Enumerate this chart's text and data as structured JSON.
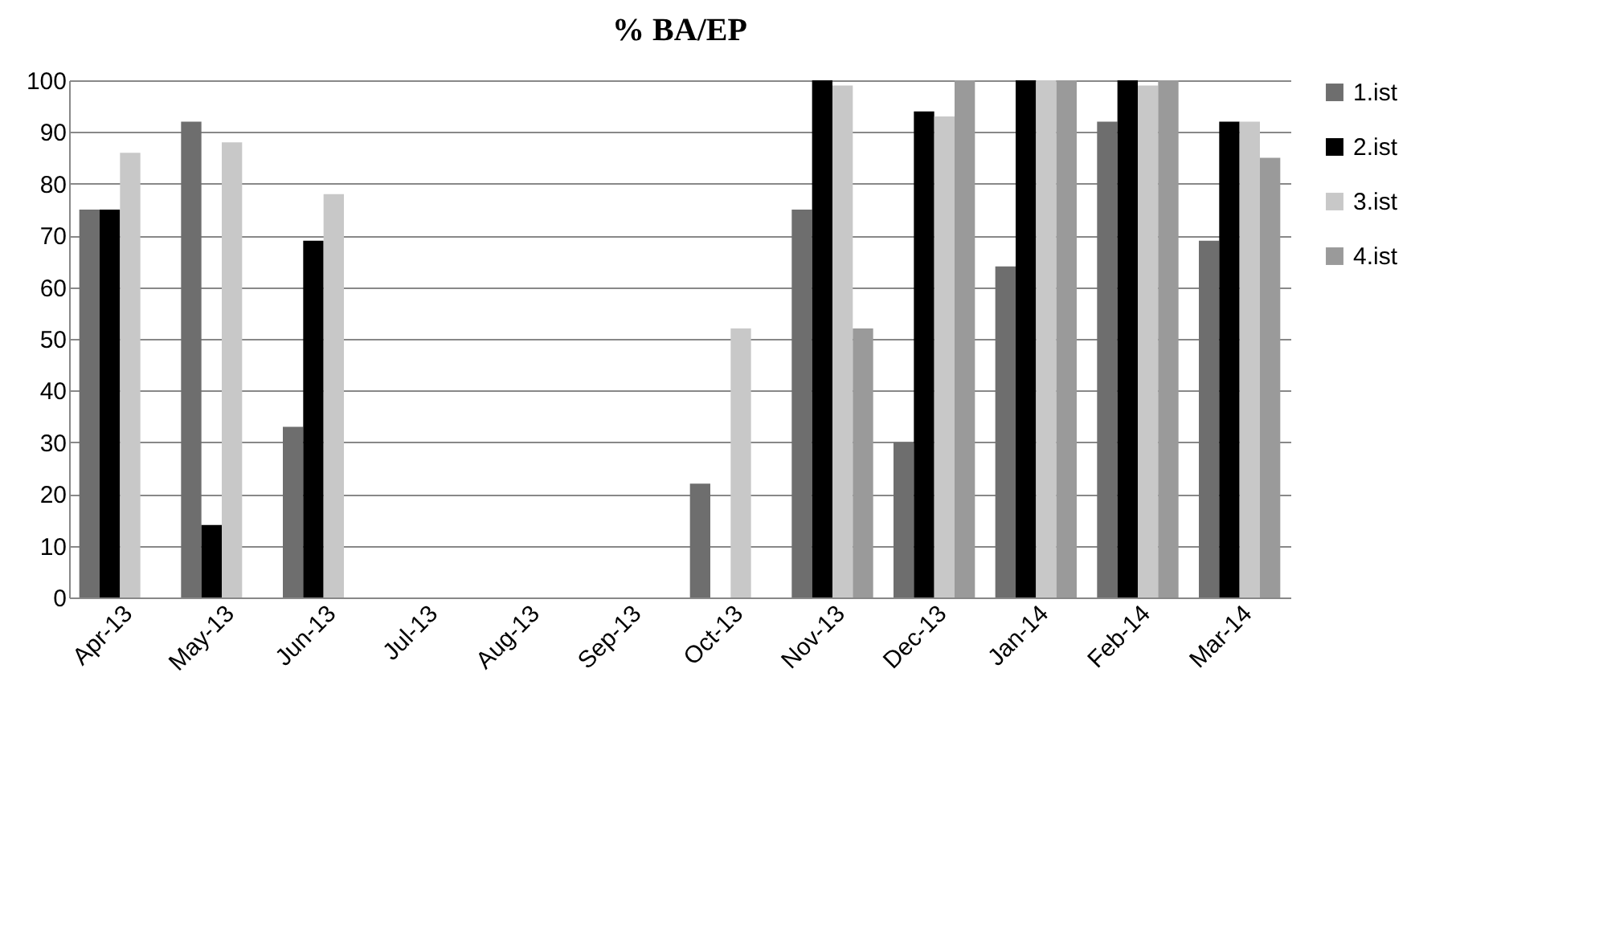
{
  "chart_data": {
    "type": "bar",
    "title": "% BA/EP",
    "categories": [
      "Apr-13",
      "May-13",
      "Jun-13",
      "Jul-13",
      "Aug-13",
      "Sep-13",
      "Oct-13",
      "Nov-13",
      "Dec-13",
      "Jan-14",
      "Feb-14",
      "Mar-14"
    ],
    "series": [
      {
        "name": "1.ist",
        "color": "#6e6e6e",
        "values": [
          75,
          92,
          33,
          null,
          null,
          null,
          22,
          75,
          30,
          64,
          92,
          69
        ]
      },
      {
        "name": "2.ist",
        "color": "#000000",
        "values": [
          75,
          14,
          69,
          null,
          null,
          null,
          null,
          100,
          94,
          100,
          100,
          92
        ]
      },
      {
        "name": "3.ist",
        "color": "#c8c8c8",
        "values": [
          86,
          88,
          78,
          null,
          null,
          null,
          52,
          99,
          93,
          100,
          99,
          92
        ]
      },
      {
        "name": "4.ist",
        "color": "#9a9a9a",
        "values": [
          null,
          null,
          null,
          null,
          null,
          null,
          null,
          52,
          100,
          100,
          100,
          85
        ]
      }
    ],
    "ylim": [
      0,
      100
    ],
    "yticks": [
      0,
      10,
      20,
      30,
      40,
      50,
      60,
      70,
      80,
      90,
      100
    ],
    "grid": "y",
    "legend": "right"
  }
}
